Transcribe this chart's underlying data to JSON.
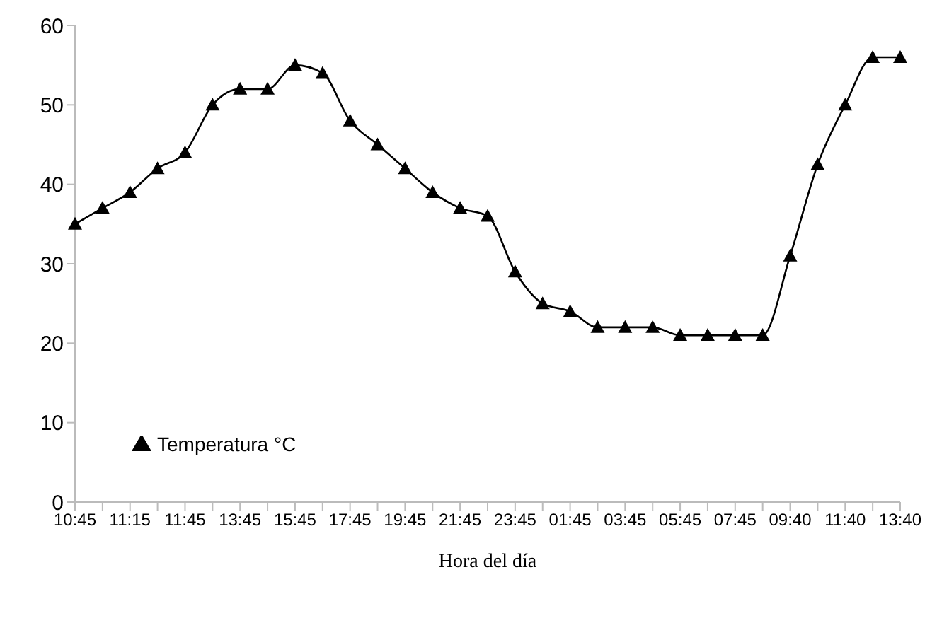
{
  "chart_data": {
    "type": "line",
    "xlabel": "Hora del día",
    "categories": [
      "10:45",
      null,
      "11:15",
      null,
      "11:45",
      null,
      "13:45",
      null,
      "15:45",
      null,
      "17:45",
      null,
      "19:45",
      null,
      "21:45",
      null,
      "23:45",
      null,
      "01:45",
      null,
      "03:45",
      null,
      "05:45",
      null,
      "07:45",
      null,
      "09:40",
      null,
      "11:40",
      null,
      "13:40"
    ],
    "series": [
      {
        "name": "Temperatura °C",
        "color": "#000000",
        "values": [
          35,
          37,
          39,
          42,
          44,
          50,
          52,
          52,
          55,
          54,
          48,
          45,
          42,
          39,
          37,
          36,
          29,
          25,
          24,
          22,
          22,
          22,
          21,
          21,
          21,
          21,
          31,
          42.5,
          50,
          56,
          56
        ]
      }
    ],
    "ylim": [
      0,
      60
    ],
    "yticks": [
      0,
      10,
      20,
      30,
      40,
      50,
      60
    ],
    "grid": false,
    "legend": "bottom left",
    "marker": "triangle",
    "line_style": "solid"
  }
}
